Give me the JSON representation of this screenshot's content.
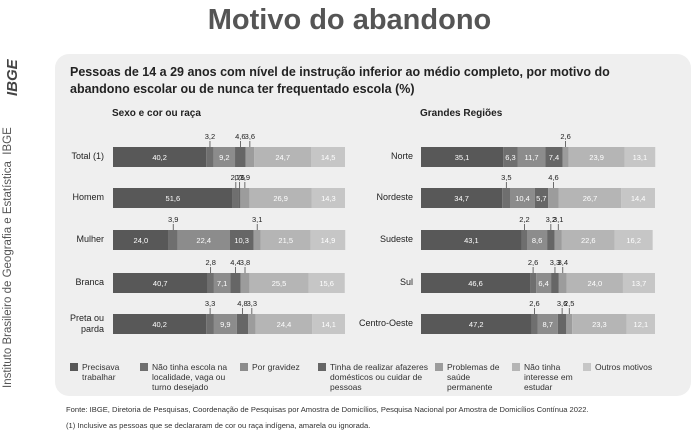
{
  "header": {
    "title": "Motivo do abandono"
  },
  "sidebar": {
    "logo": "IBGE",
    "institution": "Instituto Brasileiro de Geografia e Estatística",
    "acronym": "IBGE"
  },
  "footer": {
    "source": "Fonte: IBGE, Diretoria de Pesquisas, Coordenação de Pesquisas por Amostra de Domicílios, Pesquisa Nacional por Amostra de Domicílios Contínua 2022.",
    "note": "(1) Inclusive as pessoas que se declararam de cor ou raça indígena, amarela ou ignorada."
  },
  "chart_data": [
    {
      "type": "bar",
      "orientation": "horizontal",
      "stacked": true,
      "title": "Pessoas de 14 a 29 anos com nível de instrução inferior ao médio completo, por motivo do abandono escolar ou de nunca ter frequentado escola (%)",
      "subtitle": "Sexo e cor ou raça",
      "categories": [
        "Total (1)",
        "Homem",
        "Mulher",
        "Branca",
        "Preta ou parda"
      ],
      "xlim": [
        0,
        100
      ],
      "series": [
        {
          "name": "Precisava trabalhar",
          "color": "#585858",
          "values": [
            40.2,
            51.6,
            24.0,
            40.7,
            40.2
          ],
          "value_labels": [
            "40,2",
            "51,6",
            "24,0",
            "40,7",
            "40,2"
          ]
        },
        {
          "name": "Não tinha escola na localidade, vaga ou turno desejado",
          "color": "#6f6f6f",
          "values": [
            3.2,
            2.7,
            3.9,
            2.8,
            3.3
          ],
          "value_labels": [
            "3,2",
            "2,7",
            "3,9",
            "2,8",
            "3,3"
          ]
        },
        {
          "name": "Por gravidez",
          "color": "#8c8c8c",
          "values": [
            9.2,
            null,
            22.4,
            7.1,
            9.9
          ],
          "value_labels": [
            "9,2",
            null,
            "22,4",
            "7,1",
            "9,9"
          ]
        },
        {
          "name": "Tinha de realizar afazeres domésticos ou cuidar de pessoas",
          "color": "#666666",
          "values": [
            4.6,
            0.6,
            10.3,
            4.4,
            4.8
          ],
          "value_labels": [
            "4,6",
            "0,6",
            "10,3",
            "4,4",
            "4,8"
          ]
        },
        {
          "name": "Problemas de saúde permanente",
          "color": "#9c9c9c",
          "values": [
            3.6,
            3.9,
            3.1,
            3.8,
            3.3
          ],
          "value_labels": [
            "3,6",
            "3,9",
            "3,1",
            "3,8",
            "3,3"
          ]
        },
        {
          "name": "Não tinha interesse em estudar",
          "color": "#b5b5b5",
          "values": [
            24.7,
            26.9,
            21.5,
            25.5,
            24.4
          ],
          "value_labels": [
            "24,7",
            "26,9",
            "21,5",
            "25,5",
            "24,4"
          ]
        },
        {
          "name": "Outros motivos",
          "color": "#c6c6c6",
          "values": [
            14.5,
            14.3,
            14.9,
            15.6,
            14.1
          ],
          "value_labels": [
            "14,5",
            "14,3",
            "14,9",
            "15,6",
            "14,1"
          ]
        }
      ]
    },
    {
      "type": "bar",
      "orientation": "horizontal",
      "stacked": true,
      "subtitle": "Grandes Regiões",
      "categories": [
        "Norte",
        "Nordeste",
        "Sudeste",
        "Sul",
        "Centro-Oeste"
      ],
      "xlim": [
        0,
        100
      ],
      "series": [
        {
          "color": "#585858",
          "values": [
            35.1,
            34.7,
            43.1,
            46.6,
            47.2
          ],
          "value_labels": [
            "35,1",
            "34,7",
            "43,1",
            "46,6",
            "47,2"
          ]
        },
        {
          "color": "#6f6f6f",
          "values": [
            6.3,
            3.5,
            2.2,
            2.6,
            2.6
          ],
          "value_labels": [
            "6,3",
            "3,5",
            "2,2",
            "2,6",
            "2,6"
          ]
        },
        {
          "color": "#8c8c8c",
          "values": [
            11.7,
            10.4,
            8.6,
            6.4,
            8.7
          ],
          "value_labels": [
            "11,7",
            "10,4",
            "8,6",
            "6,4",
            "8,7"
          ]
        },
        {
          "color": "#666666",
          "values": [
            7.4,
            5.7,
            3.2,
            3.3,
            3.6
          ],
          "value_labels": [
            "7,4",
            "5,7",
            "3,2",
            "3,3",
            "3,6"
          ]
        },
        {
          "color": "#9c9c9c",
          "values": [
            2.6,
            4.6,
            3.1,
            3.4,
            2.5
          ],
          "value_labels": [
            "2,6",
            "4,6",
            "3,1",
            "3,4",
            "2,5"
          ]
        },
        {
          "color": "#b5b5b5",
          "values": [
            23.9,
            26.7,
            22.6,
            24.0,
            23.3
          ],
          "value_labels": [
            "23,9",
            "26,7",
            "22,6",
            "24,0",
            "23,3"
          ]
        },
        {
          "color": "#c6c6c6",
          "values": [
            13.1,
            14.4,
            16.2,
            13.7,
            12.1
          ],
          "value_labels": [
            "13,1",
            "14,4",
            "16,2",
            "13,7",
            "12,1"
          ]
        }
      ]
    }
  ]
}
